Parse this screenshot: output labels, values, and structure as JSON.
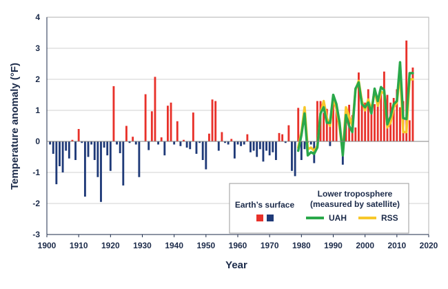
{
  "chart_data": {
    "type": "bar",
    "xlabel": "Year",
    "ylabel": "Temperature anomaly (°F)",
    "xlim": [
      1900,
      2020
    ],
    "ylim": [
      -3,
      4
    ],
    "xticks": [
      "1900",
      "1910",
      "1920",
      "1930",
      "1940",
      "1950",
      "1960",
      "1970",
      "1980",
      "1990",
      "2000",
      "2010",
      "2020"
    ],
    "yticks": [
      "-3",
      "-2",
      "-1",
      "0",
      "1",
      "2",
      "3",
      "4"
    ],
    "grid": "horizontal",
    "legend": {
      "position": "bottom-right",
      "surface_title": "Earth’s surface",
      "troposphere_title_line1": "Lower troposphere",
      "troposphere_title_line2": "(measured by satellite)",
      "uah_label": "UAH",
      "rss_label": "RSS"
    },
    "colors": {
      "positive": "#e8312a",
      "negative": "#1f3a78",
      "uah": "#2aa84a",
      "rss": "#f7c82b",
      "grid": "#d0d0d0",
      "axis": "#1b2a49",
      "legend_border": "#9a9a9a"
    },
    "surface": {
      "name": "Earth’s surface",
      "years": [
        1901,
        1902,
        1903,
        1904,
        1905,
        1906,
        1907,
        1908,
        1909,
        1910,
        1911,
        1912,
        1913,
        1914,
        1915,
        1916,
        1917,
        1918,
        1919,
        1920,
        1921,
        1922,
        1923,
        1924,
        1925,
        1926,
        1927,
        1928,
        1929,
        1930,
        1931,
        1932,
        1933,
        1934,
        1935,
        1936,
        1937,
        1938,
        1939,
        1940,
        1941,
        1942,
        1943,
        1944,
        1945,
        1946,
        1947,
        1948,
        1949,
        1950,
        1951,
        1952,
        1953,
        1954,
        1955,
        1956,
        1957,
        1958,
        1959,
        1960,
        1961,
        1962,
        1963,
        1964,
        1965,
        1966,
        1967,
        1968,
        1969,
        1970,
        1971,
        1972,
        1973,
        1974,
        1975,
        1976,
        1977,
        1978,
        1979,
        1980,
        1981,
        1982,
        1983,
        1984,
        1985,
        1986,
        1987,
        1988,
        1989,
        1990,
        1991,
        1992,
        1993,
        1994,
        1995,
        1996,
        1997,
        1998,
        1999,
        2000,
        2001,
        2002,
        2003,
        2004,
        2005,
        2006,
        2007,
        2008,
        2009,
        2010,
        2011,
        2012,
        2013,
        2014,
        2015
      ],
      "values": [
        -0.1,
        -0.4,
        -1.38,
        -0.8,
        -1.0,
        -0.3,
        -0.55,
        0.05,
        -0.6,
        0.4,
        -0.05,
        -1.78,
        -0.5,
        -0.1,
        -0.6,
        -1.15,
        -1.95,
        -0.2,
        -0.45,
        -0.95,
        1.78,
        -0.1,
        -0.38,
        -1.42,
        0.5,
        -0.05,
        0.15,
        -0.1,
        -1.15,
        0.0,
        1.52,
        -0.28,
        0.97,
        2.08,
        -0.1,
        0.13,
        -0.45,
        1.15,
        1.25,
        -0.1,
        0.65,
        -0.15,
        0.05,
        -0.2,
        -0.25,
        0.93,
        -0.4,
        -0.05,
        -0.6,
        -0.9,
        0.25,
        1.35,
        1.3,
        -0.3,
        0.3,
        -0.05,
        -0.1,
        0.08,
        -0.55,
        -0.1,
        -0.15,
        -0.1,
        0.23,
        -0.35,
        -0.3,
        -0.5,
        -0.25,
        -0.65,
        -0.3,
        -0.45,
        -0.35,
        -0.6,
        0.27,
        0.23,
        -0.05,
        0.52,
        -0.95,
        -1.12,
        1.08,
        -0.6,
        -0.25,
        -0.05,
        -0.1,
        -0.7,
        1.3,
        1.3,
        0.92,
        1.05,
        0.5,
        1.5,
        1.0,
        0.0,
        0.05,
        1.0,
        1.18,
        0.85,
        0.45,
        2.22,
        1.38,
        1.25,
        1.68,
        1.05,
        1.2,
        1.35,
        1.6,
        2.25,
        1.5,
        1.25,
        1.4,
        1.68,
        1.1,
        1.3,
        3.25,
        0.68,
        2.38
      ]
    },
    "negative_extra": {
      "years": [
        1999,
        1989,
        1993
      ],
      "values": [
        0,
        -0.15,
        -0.75
      ]
    },
    "uah": {
      "name": "UAH",
      "years": [
        1979,
        1980,
        1981,
        1982,
        1983,
        1984,
        1985,
        1986,
        1987,
        1988,
        1989,
        1990,
        1991,
        1992,
        1993,
        1994,
        1995,
        1996,
        1997,
        1998,
        1999,
        2000,
        2001,
        2002,
        2003,
        2004,
        2005,
        2006,
        2007,
        2008,
        2009,
        2010,
        2011,
        2012,
        2013,
        2014,
        2015
      ],
      "values": [
        -0.3,
        0.2,
        0.9,
        -0.45,
        -0.35,
        -0.4,
        -0.2,
        0.9,
        1.1,
        0.6,
        0.6,
        1.5,
        1.2,
        0.6,
        -0.45,
        0.85,
        0.5,
        0.3,
        1.7,
        1.9,
        1.2,
        1.1,
        1.25,
        0.9,
        1.7,
        1.3,
        1.75,
        1.65,
        0.55,
        0.8,
        1.2,
        1.3,
        2.55,
        0.75,
        0.72,
        2.2,
        2.2
      ]
    },
    "rss": {
      "name": "RSS",
      "years": [
        1979,
        1980,
        1981,
        1982,
        1983,
        1984,
        1985,
        1986,
        1987,
        1988,
        1989,
        1990,
        1991,
        1992,
        1993,
        1994,
        1995,
        1996,
        1997,
        1998,
        1999,
        2000,
        2001,
        2002,
        2003,
        2004,
        2005,
        2006,
        2007,
        2008,
        2009,
        2010,
        2011,
        2012,
        2013,
        2014,
        2015
      ],
      "values": [
        -0.2,
        0.3,
        1.1,
        -0.25,
        -0.2,
        -0.3,
        -0.15,
        0.9,
        1.3,
        0.75,
        0.5,
        1.4,
        1.05,
        0.45,
        -0.35,
        1.1,
        0.8,
        0.5,
        1.65,
        1.95,
        1.3,
        1.0,
        1.35,
        1.0,
        1.65,
        1.15,
        1.6,
        1.55,
        0.45,
        0.6,
        1.1,
        1.25,
        2.2,
        0.3,
        0.3,
        2.0,
        2.0
      ]
    }
  }
}
